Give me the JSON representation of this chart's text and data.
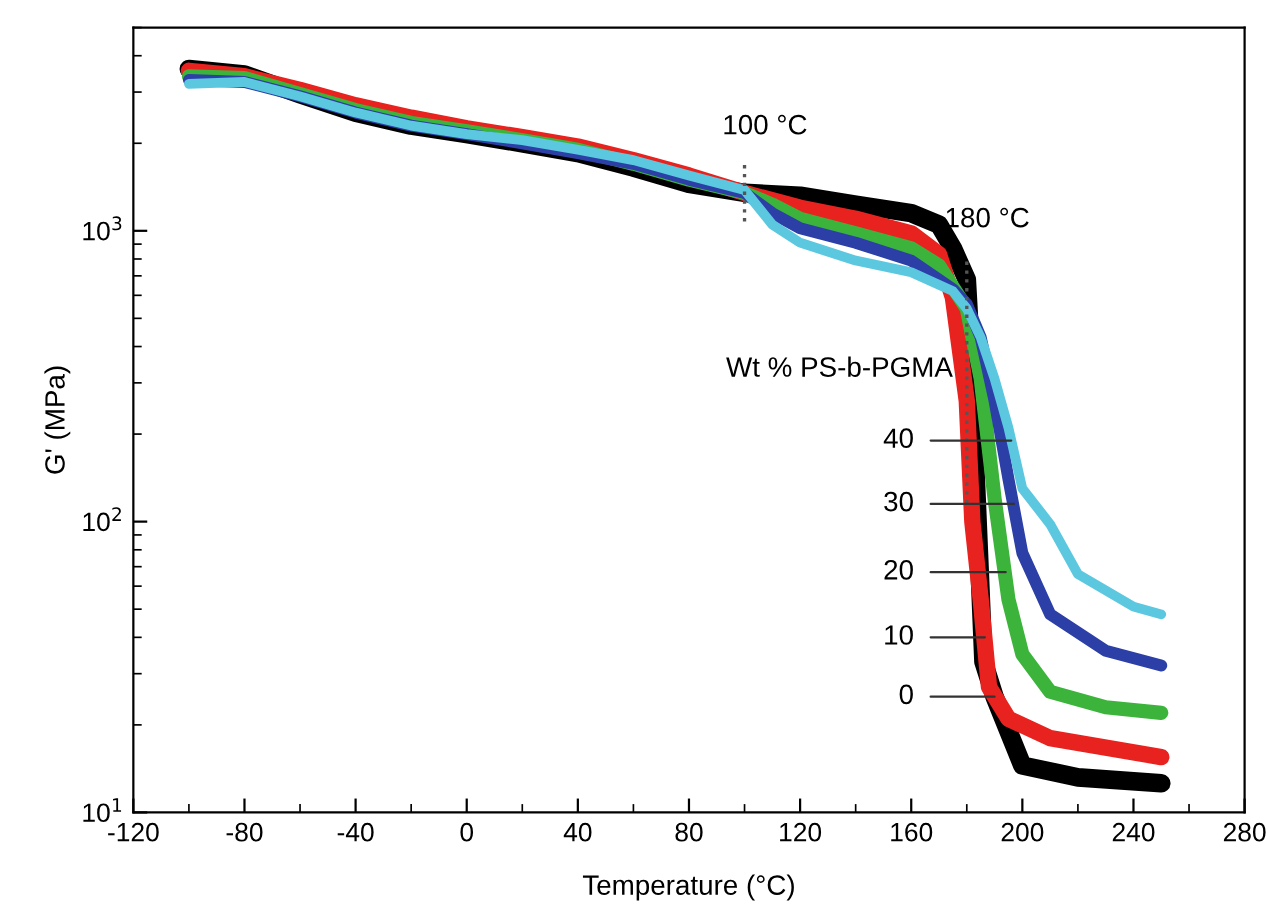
{
  "chart_data": {
    "type": "line",
    "xlabel": "Temperature (°C)",
    "ylabel": "G' (MPa)",
    "log": "y",
    "xlim": [
      -120,
      280
    ],
    "xticks": [
      -120,
      -80,
      -40,
      0,
      40,
      80,
      120,
      160,
      200,
      240,
      280
    ],
    "ylim": [
      10,
      5000
    ],
    "yticks": [
      {
        "value": 10,
        "label": "10$^{1}$"
      },
      {
        "value": 100,
        "label": "10$^{2}$"
      },
      {
        "value": 1000,
        "label": "10$^{3}$"
      }
    ],
    "grid": false,
    "legend": false,
    "marker": "none",
    "line_style": "solid",
    "legend_title": "Wt % PS-b-PGMA",
    "series": [
      {
        "color": "#000000",
        "x": [
          -100,
          -80,
          -60,
          -40,
          -20,
          0,
          20,
          40,
          60,
          80,
          100,
          120,
          140,
          160,
          170,
          175,
          180,
          181,
          183,
          186,
          190,
          200,
          220,
          250
        ],
        "values": [
          3600,
          3450,
          2950,
          2550,
          2300,
          2150,
          2000,
          1850,
          1650,
          1450,
          1350,
          1320,
          1230,
          1150,
          1050,
          870,
          680,
          460,
          160,
          33,
          25,
          14.5,
          13.2,
          12.6
        ]
      },
      {
        "color": "#e8231f",
        "x": [
          -100,
          -80,
          -60,
          -40,
          -20,
          0,
          20,
          40,
          60,
          80,
          100,
          120,
          140,
          160,
          170,
          175,
          180,
          182,
          185,
          188,
          195,
          210,
          250
        ],
        "values": [
          3550,
          3400,
          3050,
          2700,
          2450,
          2250,
          2100,
          1950,
          1750,
          1550,
          1350,
          1200,
          1100,
          980,
          830,
          590,
          260,
          100,
          54,
          27,
          21,
          18,
          15.5
        ]
      },
      {
        "color": "#3cb43c",
        "x": [
          -100,
          -80,
          -60,
          -40,
          -20,
          0,
          20,
          40,
          60,
          80,
          100,
          110,
          120,
          140,
          160,
          170,
          180,
          185,
          190,
          195,
          200,
          210,
          230,
          250
        ],
        "values": [
          3400,
          3350,
          2950,
          2600,
          2350,
          2200,
          2050,
          1900,
          1700,
          1500,
          1350,
          1230,
          1100,
          980,
          870,
          760,
          540,
          310,
          120,
          54,
          35,
          26,
          23,
          22
        ]
      },
      {
        "color": "#2b3fa6",
        "x": [
          -100,
          -80,
          -60,
          -40,
          -20,
          0,
          20,
          40,
          60,
          80,
          100,
          110,
          120,
          140,
          160,
          175,
          180,
          185,
          190,
          195,
          200,
          210,
          230,
          250
        ],
        "values": [
          3300,
          3250,
          2900,
          2550,
          2300,
          2150,
          2000,
          1850,
          1700,
          1500,
          1350,
          1150,
          1020,
          910,
          790,
          630,
          560,
          430,
          260,
          140,
          78,
          48,
          36,
          32
        ]
      },
      {
        "color": "#5bc8e0",
        "x": [
          -100,
          -80,
          -60,
          -40,
          -20,
          0,
          20,
          40,
          60,
          80,
          100,
          110,
          120,
          140,
          160,
          175,
          180,
          185,
          190,
          195,
          200,
          210,
          220,
          240,
          250
        ],
        "values": [
          3200,
          3250,
          2900,
          2550,
          2300,
          2150,
          2050,
          1900,
          1750,
          1550,
          1380,
          1050,
          910,
          790,
          720,
          620,
          540,
          430,
          310,
          210,
          130,
          98,
          66,
          51,
          48
        ]
      }
    ],
    "annotations": [
      {
        "text": "40",
        "x": 196,
        "y": 190
      },
      {
        "text": "30",
        "x": 197,
        "y": 115
      },
      {
        "text": "20",
        "x": 194,
        "y": 67
      },
      {
        "text": "10",
        "x": 186.5,
        "y": 40
      },
      {
        "text": "0",
        "x": 190,
        "y": 25
      }
    ],
    "ref_lines": [
      {
        "axis": "x",
        "value": 100,
        "label": "100 °C",
        "line_style": "dotted",
        "color": "#555555"
      },
      {
        "axis": "x",
        "value": 180,
        "label": "180 °C",
        "line_style": "dotted",
        "color": "#555555"
      }
    ]
  }
}
